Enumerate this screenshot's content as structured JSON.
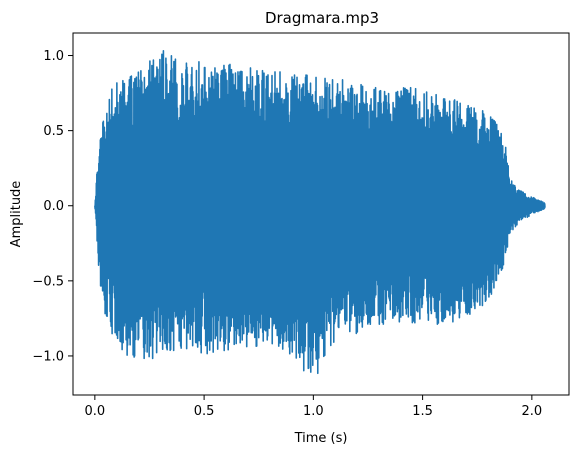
{
  "chart_data": {
    "type": "line",
    "title": "Dragmara.mp3",
    "xlabel": "Time (s)",
    "ylabel": "Amplitude",
    "xlim": [
      -0.1,
      2.17
    ],
    "ylim": [
      -1.26,
      1.15
    ],
    "xticks": [
      0.0,
      0.5,
      1.0,
      1.5,
      2.0
    ],
    "xtick_labels": [
      "0.0",
      "0.5",
      "1.0",
      "1.5",
      "2.0"
    ],
    "yticks": [
      -1.0,
      -0.5,
      0.0,
      0.5,
      1.0
    ],
    "ytick_labels": [
      "−1.0",
      "−0.5",
      "0.0",
      "0.5",
      "1.0"
    ],
    "grid": false,
    "series": [
      {
        "color": "#1f77b4",
        "duration": 2.06,
        "envelope": {
          "t": [
            0.0,
            0.02,
            0.05,
            0.1,
            0.2,
            0.3,
            0.4,
            0.5,
            0.6,
            0.7,
            0.8,
            0.9,
            1.0,
            1.1,
            1.2,
            1.3,
            1.4,
            1.5,
            1.6,
            1.7,
            1.8,
            1.85,
            1.88,
            1.9,
            1.95,
            2.0,
            2.06
          ],
          "upper": [
            0.0,
            0.5,
            0.7,
            0.85,
            0.9,
            1.05,
            0.95,
            0.97,
            0.95,
            0.92,
            0.9,
            0.88,
            0.87,
            0.85,
            0.82,
            0.8,
            0.8,
            0.78,
            0.72,
            0.7,
            0.62,
            0.55,
            0.4,
            0.18,
            0.1,
            0.06,
            0.02
          ],
          "lower": [
            0.0,
            -0.5,
            -0.75,
            -0.95,
            -1.05,
            -1.0,
            -0.95,
            -1.0,
            -0.97,
            -0.95,
            -0.92,
            -1.0,
            -1.18,
            -0.9,
            -0.85,
            -0.8,
            -0.78,
            -0.78,
            -0.8,
            -0.75,
            -0.65,
            -0.5,
            -0.35,
            -0.18,
            -0.1,
            -0.06,
            -0.02
          ]
        }
      }
    ]
  }
}
